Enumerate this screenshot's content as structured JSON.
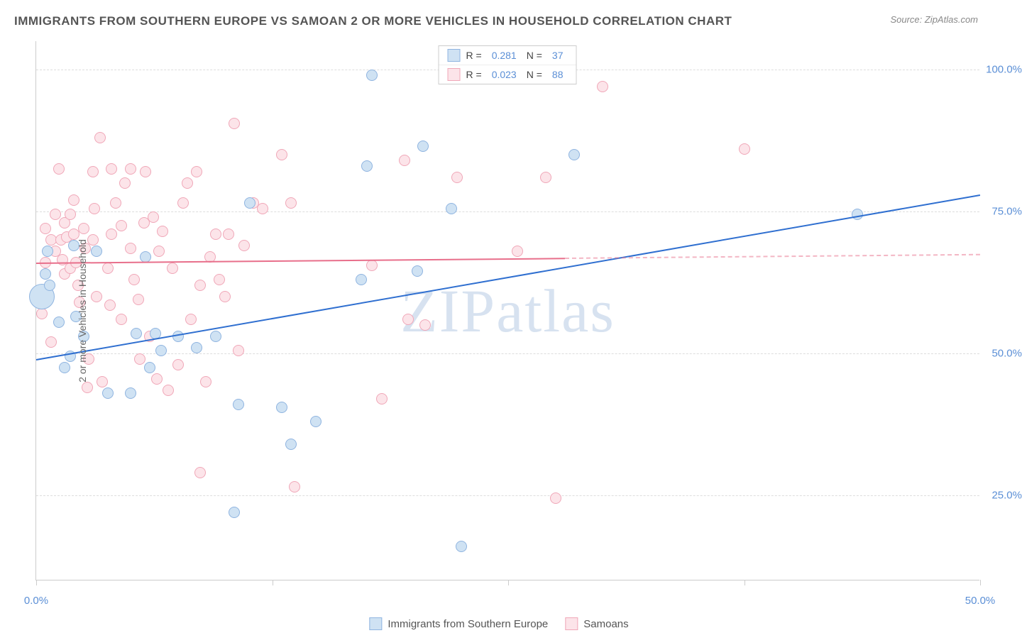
{
  "title": "IMMIGRANTS FROM SOUTHERN EUROPE VS SAMOAN 2 OR MORE VEHICLES IN HOUSEHOLD CORRELATION CHART",
  "source": "Source: ZipAtlas.com",
  "watermark": "ZIPatlas",
  "chart": {
    "type": "scatter",
    "ylabel": "2 or more Vehicles in Household",
    "xlim": [
      0,
      50
    ],
    "ylim": [
      10,
      105
    ],
    "xticks": [
      0,
      25,
      50
    ],
    "xtick_labels": [
      "0.0%",
      "",
      "50.0%"
    ],
    "yticks": [
      25,
      50,
      75,
      100
    ],
    "ytick_labels": [
      "25.0%",
      "50.0%",
      "75.0%",
      "100.0%"
    ],
    "xtick_minor": [
      0,
      12.5,
      25,
      37.5,
      50
    ],
    "background_color": "#ffffff",
    "grid_color": "#dddddd",
    "point_radius": 8,
    "series": [
      {
        "name": "Immigrants from Southern Europe",
        "fill": "#cfe2f3",
        "stroke": "#8fb4e0",
        "R": "0.281",
        "N": "37",
        "trend_color": "#2f6fd0",
        "trend": {
          "x1": 0,
          "y1": 49,
          "x2": 50,
          "y2": 78,
          "solid_until_x": 50
        },
        "points": [
          [
            0.5,
            64
          ],
          [
            0.6,
            68
          ],
          [
            0.7,
            62
          ],
          [
            1.2,
            55.5
          ],
          [
            1.5,
            47.5
          ],
          [
            1.8,
            49.5
          ],
          [
            2.0,
            69
          ],
          [
            2.1,
            56.5
          ],
          [
            2.5,
            53
          ],
          [
            3.2,
            68
          ],
          [
            3.8,
            43
          ],
          [
            5.0,
            43
          ],
          [
            5.3,
            53.5
          ],
          [
            5.8,
            67
          ],
          [
            6.0,
            47.5
          ],
          [
            6.3,
            53.5
          ],
          [
            6.6,
            50.5
          ],
          [
            7.5,
            53
          ],
          [
            8.5,
            51
          ],
          [
            9.5,
            53
          ],
          [
            10.5,
            22
          ],
          [
            10.7,
            41
          ],
          [
            11.3,
            76.5
          ],
          [
            13.0,
            40.5
          ],
          [
            13.5,
            34
          ],
          [
            14.8,
            38
          ],
          [
            17.2,
            63
          ],
          [
            17.5,
            83
          ],
          [
            17.8,
            99
          ],
          [
            20.2,
            64.5
          ],
          [
            20.5,
            86.5
          ],
          [
            22.0,
            75.5
          ],
          [
            22.5,
            16
          ],
          [
            28.5,
            85
          ],
          [
            43.5,
            74.5
          ]
        ],
        "large_points": [
          [
            0.3,
            60,
            18
          ]
        ]
      },
      {
        "name": "Samoans",
        "fill": "#fce4e9",
        "stroke": "#f0a7b8",
        "R": "0.023",
        "N": "88",
        "trend_color": "#e86f8b",
        "trend": {
          "x1": 0,
          "y1": 66,
          "x2": 50,
          "y2": 67.5,
          "solid_until_x": 28
        },
        "points": [
          [
            0.3,
            57
          ],
          [
            0.5,
            72
          ],
          [
            0.5,
            66
          ],
          [
            0.8,
            70
          ],
          [
            0.8,
            52
          ],
          [
            1.0,
            74.5
          ],
          [
            1.0,
            68
          ],
          [
            1.2,
            82.5
          ],
          [
            1.3,
            70
          ],
          [
            1.4,
            66.5
          ],
          [
            1.5,
            73
          ],
          [
            1.5,
            64
          ],
          [
            1.6,
            70.5
          ],
          [
            1.8,
            74.5
          ],
          [
            1.8,
            65
          ],
          [
            2.0,
            71
          ],
          [
            2.0,
            77
          ],
          [
            2.1,
            66
          ],
          [
            2.2,
            62
          ],
          [
            2.3,
            59
          ],
          [
            2.5,
            72
          ],
          [
            2.6,
            68.5
          ],
          [
            2.7,
            44
          ],
          [
            2.8,
            49
          ],
          [
            3.0,
            82
          ],
          [
            3.0,
            70
          ],
          [
            3.1,
            75.5
          ],
          [
            3.2,
            60
          ],
          [
            3.4,
            88
          ],
          [
            3.5,
            45
          ],
          [
            3.8,
            65
          ],
          [
            3.9,
            58.5
          ],
          [
            4.0,
            71
          ],
          [
            4.0,
            82.5
          ],
          [
            4.2,
            76.5
          ],
          [
            4.5,
            56
          ],
          [
            4.5,
            72.5
          ],
          [
            4.7,
            80
          ],
          [
            5.0,
            68.5
          ],
          [
            5.0,
            82.5
          ],
          [
            5.2,
            63
          ],
          [
            5.4,
            59.5
          ],
          [
            5.5,
            49
          ],
          [
            5.7,
            73
          ],
          [
            5.8,
            82
          ],
          [
            6.0,
            53
          ],
          [
            6.2,
            74
          ],
          [
            6.4,
            45.5
          ],
          [
            6.5,
            68
          ],
          [
            6.7,
            71.5
          ],
          [
            7.0,
            43.5
          ],
          [
            7.2,
            65
          ],
          [
            7.5,
            48
          ],
          [
            7.8,
            76.5
          ],
          [
            8.0,
            80
          ],
          [
            8.2,
            56
          ],
          [
            8.5,
            82
          ],
          [
            8.7,
            29
          ],
          [
            8.7,
            62
          ],
          [
            9.0,
            45
          ],
          [
            9.2,
            67
          ],
          [
            9.5,
            71
          ],
          [
            9.7,
            63
          ],
          [
            10.0,
            60
          ],
          [
            10.2,
            71
          ],
          [
            10.5,
            90.5
          ],
          [
            10.7,
            50.5
          ],
          [
            11.0,
            69
          ],
          [
            11.5,
            76.5
          ],
          [
            12.0,
            75.5
          ],
          [
            13.0,
            85
          ],
          [
            13.5,
            76.5
          ],
          [
            13.7,
            26.5
          ],
          [
            17.8,
            65.5
          ],
          [
            18.3,
            42
          ],
          [
            19.5,
            84
          ],
          [
            19.7,
            56
          ],
          [
            20.6,
            55
          ],
          [
            22.3,
            81
          ],
          [
            25.5,
            68
          ],
          [
            27.0,
            81
          ],
          [
            27.5,
            24.5
          ],
          [
            30.0,
            97
          ],
          [
            37.5,
            86
          ]
        ]
      }
    ]
  },
  "legend_bottom": [
    {
      "label": "Immigrants from Southern Europe",
      "fill": "#cfe2f3",
      "stroke": "#8fb4e0"
    },
    {
      "label": "Samoans",
      "fill": "#fce4e9",
      "stroke": "#f0a7b8"
    }
  ]
}
